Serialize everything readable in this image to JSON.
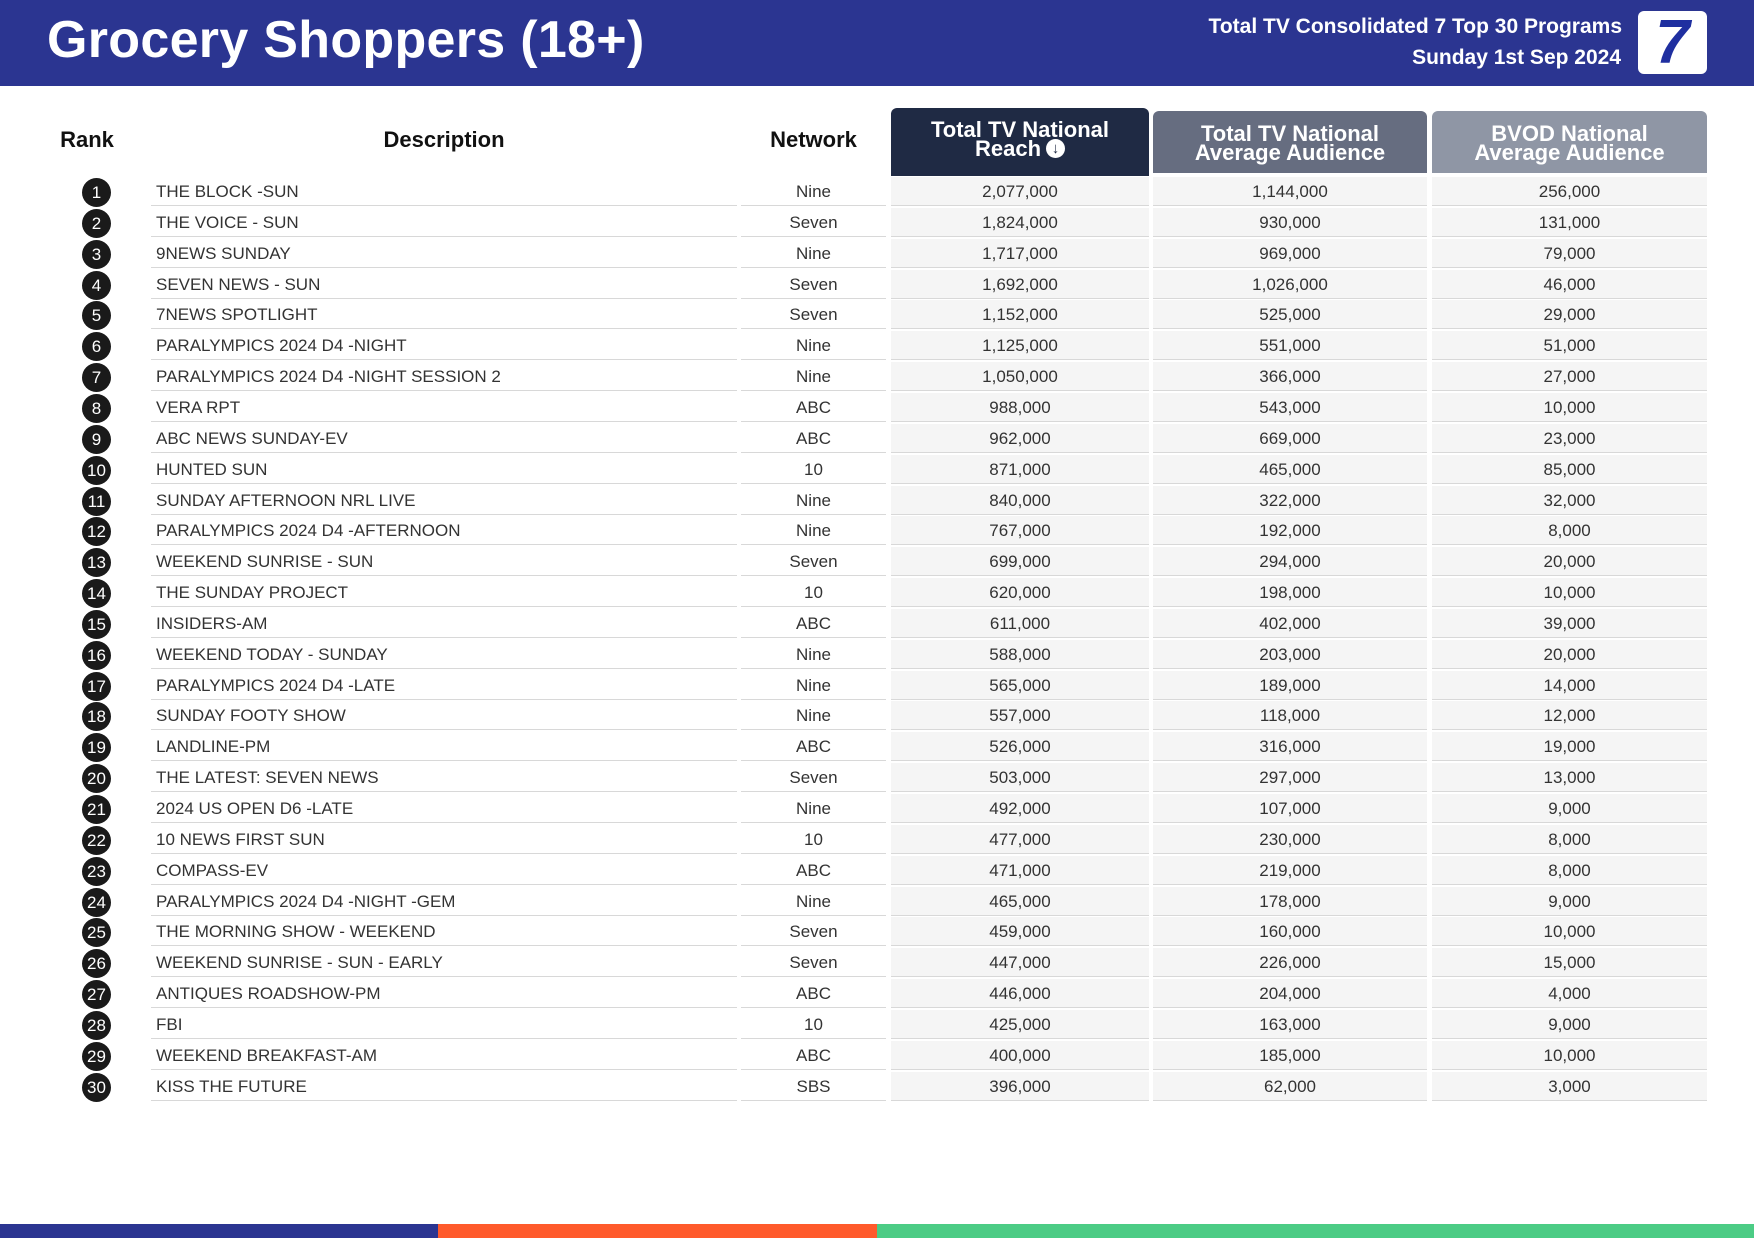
{
  "header": {
    "title": "Grocery Shoppers (18+)",
    "subtitle_line1": "Total TV Consolidated 7 Top 30 Programs",
    "subtitle_line2": "Sunday 1st Sep 2024",
    "logo_text": "7",
    "brand_color": "#2b3591"
  },
  "columns": {
    "rank": "Rank",
    "description": "Description",
    "network": "Network",
    "metric1_line1": "Total TV National",
    "metric1_line2": "Reach",
    "metric1_sort_icon": "sort-down-circle-icon",
    "metric2_line1": "Total TV National",
    "metric2_line2": "Average Audience",
    "metric3_line1": "BVOD National",
    "metric3_line2": "Average Audience",
    "metric1_color": "#1f2a44",
    "metric2_color": "#666d80",
    "metric3_color": "#8f96a5"
  },
  "rows": [
    {
      "rank": "1",
      "description": "THE BLOCK -SUN",
      "network": "Nine",
      "reach": "2,077,000",
      "avg_audience": "1,144,000",
      "bvod": "256,000"
    },
    {
      "rank": "2",
      "description": "THE VOICE - SUN",
      "network": "Seven",
      "reach": "1,824,000",
      "avg_audience": "930,000",
      "bvod": "131,000"
    },
    {
      "rank": "3",
      "description": "9NEWS SUNDAY",
      "network": "Nine",
      "reach": "1,717,000",
      "avg_audience": "969,000",
      "bvod": "79,000"
    },
    {
      "rank": "4",
      "description": "SEVEN NEWS - SUN",
      "network": "Seven",
      "reach": "1,692,000",
      "avg_audience": "1,026,000",
      "bvod": "46,000"
    },
    {
      "rank": "5",
      "description": "7NEWS SPOTLIGHT",
      "network": "Seven",
      "reach": "1,152,000",
      "avg_audience": "525,000",
      "bvod": "29,000"
    },
    {
      "rank": "6",
      "description": "PARALYMPICS 2024 D4 -NIGHT",
      "network": "Nine",
      "reach": "1,125,000",
      "avg_audience": "551,000",
      "bvod": "51,000"
    },
    {
      "rank": "7",
      "description": "PARALYMPICS 2024 D4 -NIGHT SESSION 2",
      "network": "Nine",
      "reach": "1,050,000",
      "avg_audience": "366,000",
      "bvod": "27,000"
    },
    {
      "rank": "8",
      "description": "VERA RPT",
      "network": "ABC",
      "reach": "988,000",
      "avg_audience": "543,000",
      "bvod": "10,000"
    },
    {
      "rank": "9",
      "description": "ABC NEWS SUNDAY-EV",
      "network": "ABC",
      "reach": "962,000",
      "avg_audience": "669,000",
      "bvod": "23,000"
    },
    {
      "rank": "10",
      "description": "HUNTED SUN",
      "network": "10",
      "reach": "871,000",
      "avg_audience": "465,000",
      "bvod": "85,000"
    },
    {
      "rank": "11",
      "description": "SUNDAY AFTERNOON NRL LIVE",
      "network": "Nine",
      "reach": "840,000",
      "avg_audience": "322,000",
      "bvod": "32,000"
    },
    {
      "rank": "12",
      "description": "PARALYMPICS 2024 D4 -AFTERNOON",
      "network": "Nine",
      "reach": "767,000",
      "avg_audience": "192,000",
      "bvod": "8,000"
    },
    {
      "rank": "13",
      "description": "WEEKEND SUNRISE - SUN",
      "network": "Seven",
      "reach": "699,000",
      "avg_audience": "294,000",
      "bvod": "20,000"
    },
    {
      "rank": "14",
      "description": "THE SUNDAY PROJECT",
      "network": "10",
      "reach": "620,000",
      "avg_audience": "198,000",
      "bvod": "10,000"
    },
    {
      "rank": "15",
      "description": "INSIDERS-AM",
      "network": "ABC",
      "reach": "611,000",
      "avg_audience": "402,000",
      "bvod": "39,000"
    },
    {
      "rank": "16",
      "description": "WEEKEND TODAY - SUNDAY",
      "network": "Nine",
      "reach": "588,000",
      "avg_audience": "203,000",
      "bvod": "20,000"
    },
    {
      "rank": "17",
      "description": "PARALYMPICS 2024 D4 -LATE",
      "network": "Nine",
      "reach": "565,000",
      "avg_audience": "189,000",
      "bvod": "14,000"
    },
    {
      "rank": "18",
      "description": "SUNDAY FOOTY SHOW",
      "network": "Nine",
      "reach": "557,000",
      "avg_audience": "118,000",
      "bvod": "12,000"
    },
    {
      "rank": "19",
      "description": "LANDLINE-PM",
      "network": "ABC",
      "reach": "526,000",
      "avg_audience": "316,000",
      "bvod": "19,000"
    },
    {
      "rank": "20",
      "description": "THE LATEST: SEVEN NEWS",
      "network": "Seven",
      "reach": "503,000",
      "avg_audience": "297,000",
      "bvod": "13,000"
    },
    {
      "rank": "21",
      "description": "2024 US OPEN D6 -LATE",
      "network": "Nine",
      "reach": "492,000",
      "avg_audience": "107,000",
      "bvod": "9,000"
    },
    {
      "rank": "22",
      "description": "10 NEWS FIRST SUN",
      "network": "10",
      "reach": "477,000",
      "avg_audience": "230,000",
      "bvod": "8,000"
    },
    {
      "rank": "23",
      "description": "COMPASS-EV",
      "network": "ABC",
      "reach": "471,000",
      "avg_audience": "219,000",
      "bvod": "8,000"
    },
    {
      "rank": "24",
      "description": "PARALYMPICS 2024 D4 -NIGHT -GEM",
      "network": "Nine",
      "reach": "465,000",
      "avg_audience": "178,000",
      "bvod": "9,000"
    },
    {
      "rank": "25",
      "description": "THE MORNING SHOW - WEEKEND",
      "network": "Seven",
      "reach": "459,000",
      "avg_audience": "160,000",
      "bvod": "10,000"
    },
    {
      "rank": "26",
      "description": "WEEKEND SUNRISE - SUN - EARLY",
      "network": "Seven",
      "reach": "447,000",
      "avg_audience": "226,000",
      "bvod": "15,000"
    },
    {
      "rank": "27",
      "description": "ANTIQUES ROADSHOW-PM",
      "network": "ABC",
      "reach": "446,000",
      "avg_audience": "204,000",
      "bvod": "4,000"
    },
    {
      "rank": "28",
      "description": "FBI",
      "network": "10",
      "reach": "425,000",
      "avg_audience": "163,000",
      "bvod": "9,000"
    },
    {
      "rank": "29",
      "description": "WEEKEND BREAKFAST-AM",
      "network": "ABC",
      "reach": "400,000",
      "avg_audience": "185,000",
      "bvod": "10,000"
    },
    {
      "rank": "30",
      "description": "KISS THE FUTURE",
      "network": "SBS",
      "reach": "396,000",
      "avg_audience": "62,000",
      "bvod": "3,000"
    }
  ],
  "footer": {
    "bar_colors": [
      "#2b3591",
      "#ff5a2b",
      "#4ccc85"
    ]
  }
}
